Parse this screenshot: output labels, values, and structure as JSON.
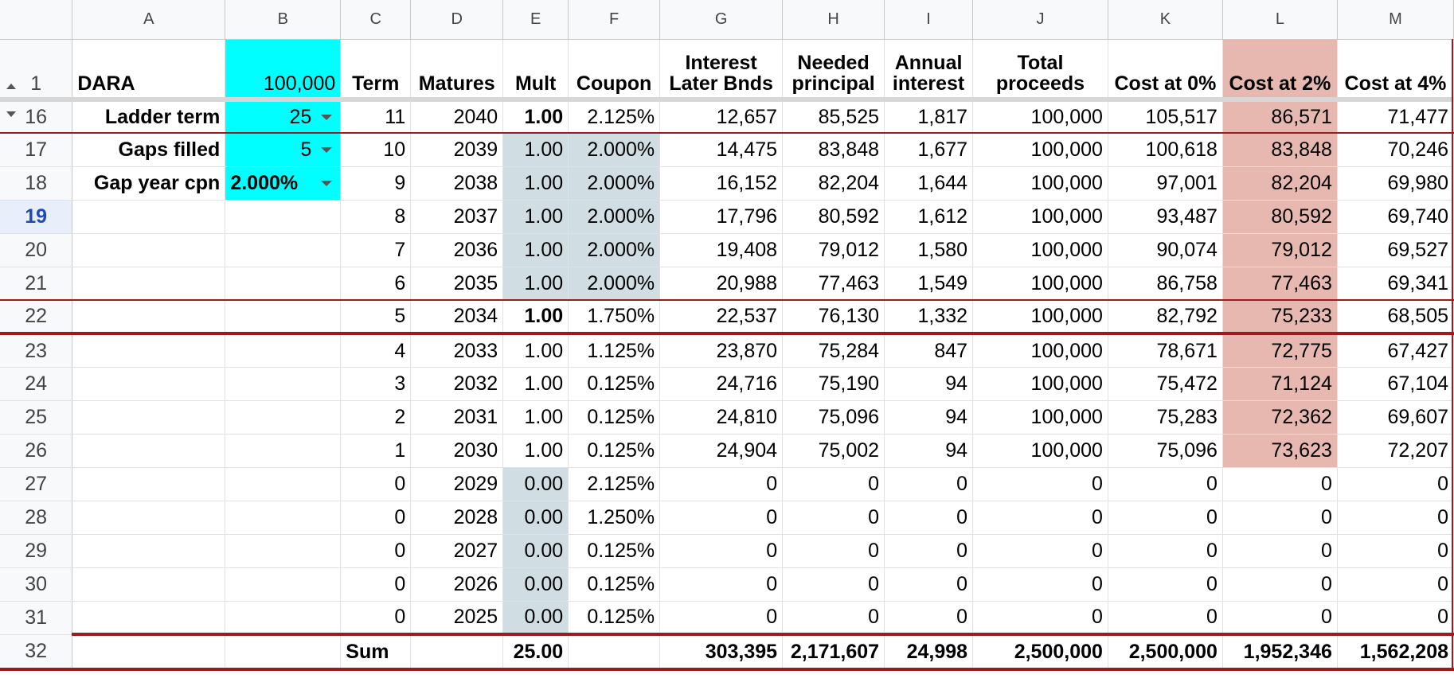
{
  "columns": [
    "A",
    "B",
    "C",
    "D",
    "E",
    "F",
    "G",
    "H",
    "I",
    "J",
    "K",
    "L",
    "M"
  ],
  "header_row": {
    "row": "1",
    "A": "DARA",
    "B": "100,000",
    "C": "Term",
    "D": "Matures",
    "E": "Mult",
    "F": "Coupon",
    "G1": "Interest",
    "G2": "Later Bnds",
    "H1": "Needed",
    "H2": "principal",
    "I1": "Annual",
    "I2": "interest",
    "J1": "Total",
    "J2": "proceeds",
    "K": "Cost at 0%",
    "L": "Cost at 2%",
    "M": "Cost at 4%"
  },
  "inputs": {
    "ladder_term_label": "Ladder term",
    "ladder_term_value": "25",
    "gaps_filled_label": "Gaps filled",
    "gaps_filled_value": "5",
    "gap_year_cpn_label": "Gap year cpn",
    "gap_year_cpn_value": "2.000%"
  },
  "rows": [
    {
      "row": "16",
      "C": "11",
      "D": "2040",
      "E": "1.00",
      "F": "2.125%",
      "G": "12,657",
      "H": "85,525",
      "I": "1,817",
      "J": "100,000",
      "K": "105,517",
      "L": "86,571",
      "M": "71,477"
    },
    {
      "row": "17",
      "C": "10",
      "D": "2039",
      "E": "1.00",
      "F": "2.000%",
      "G": "14,475",
      "H": "83,848",
      "I": "1,677",
      "J": "100,000",
      "K": "100,618",
      "L": "83,848",
      "M": "70,246"
    },
    {
      "row": "18",
      "C": "9",
      "D": "2038",
      "E": "1.00",
      "F": "2.000%",
      "G": "16,152",
      "H": "82,204",
      "I": "1,644",
      "J": "100,000",
      "K": "97,001",
      "L": "82,204",
      "M": "69,980"
    },
    {
      "row": "19",
      "C": "8",
      "D": "2037",
      "E": "1.00",
      "F": "2.000%",
      "G": "17,796",
      "H": "80,592",
      "I": "1,612",
      "J": "100,000",
      "K": "93,487",
      "L": "80,592",
      "M": "69,740"
    },
    {
      "row": "20",
      "C": "7",
      "D": "2036",
      "E": "1.00",
      "F": "2.000%",
      "G": "19,408",
      "H": "79,012",
      "I": "1,580",
      "J": "100,000",
      "K": "90,074",
      "L": "79,012",
      "M": "69,527"
    },
    {
      "row": "21",
      "C": "6",
      "D": "2035",
      "E": "1.00",
      "F": "2.000%",
      "G": "20,988",
      "H": "77,463",
      "I": "1,549",
      "J": "100,000",
      "K": "86,758",
      "L": "77,463",
      "M": "69,341"
    },
    {
      "row": "22",
      "C": "5",
      "D": "2034",
      "E": "1.00",
      "F": "1.750%",
      "G": "22,537",
      "H": "76,130",
      "I": "1,332",
      "J": "100,000",
      "K": "82,792",
      "L": "75,233",
      "M": "68,505"
    },
    {
      "row": "23",
      "C": "4",
      "D": "2033",
      "E": "1.00",
      "F": "1.125%",
      "G": "23,870",
      "H": "75,284",
      "I": "847",
      "J": "100,000",
      "K": "78,671",
      "L": "72,775",
      "M": "67,427"
    },
    {
      "row": "24",
      "C": "3",
      "D": "2032",
      "E": "1.00",
      "F": "0.125%",
      "G": "24,716",
      "H": "75,190",
      "I": "94",
      "J": "100,000",
      "K": "75,472",
      "L": "71,124",
      "M": "67,104"
    },
    {
      "row": "25",
      "C": "2",
      "D": "2031",
      "E": "1.00",
      "F": "0.125%",
      "G": "24,810",
      "H": "75,096",
      "I": "94",
      "J": "100,000",
      "K": "75,283",
      "L": "72,362",
      "M": "69,607"
    },
    {
      "row": "26",
      "C": "1",
      "D": "2030",
      "E": "1.00",
      "F": "0.125%",
      "G": "24,904",
      "H": "75,002",
      "I": "94",
      "J": "100,000",
      "K": "75,096",
      "L": "73,623",
      "M": "72,207"
    },
    {
      "row": "27",
      "C": "0",
      "D": "2029",
      "E": "0.00",
      "F": "2.125%",
      "G": "0",
      "H": "0",
      "I": "0",
      "J": "0",
      "K": "0",
      "L": "0",
      "M": "0"
    },
    {
      "row": "28",
      "C": "0",
      "D": "2028",
      "E": "0.00",
      "F": "1.250%",
      "G": "0",
      "H": "0",
      "I": "0",
      "J": "0",
      "K": "0",
      "L": "0",
      "M": "0"
    },
    {
      "row": "29",
      "C": "0",
      "D": "2027",
      "E": "0.00",
      "F": "0.125%",
      "G": "0",
      "H": "0",
      "I": "0",
      "J": "0",
      "K": "0",
      "L": "0",
      "M": "0"
    },
    {
      "row": "30",
      "C": "0",
      "D": "2026",
      "E": "0.00",
      "F": "0.125%",
      "G": "0",
      "H": "0",
      "I": "0",
      "J": "0",
      "K": "0",
      "L": "0",
      "M": "0"
    },
    {
      "row": "31",
      "C": "0",
      "D": "2025",
      "E": "0.00",
      "F": "0.125%",
      "G": "0",
      "H": "0",
      "I": "0",
      "J": "0",
      "K": "0",
      "L": "0",
      "M": "0"
    }
  ],
  "sum_row": {
    "row": "32",
    "C": "Sum",
    "E": "25.00",
    "G": "303,395",
    "H": "2,171,607",
    "I": "24,998",
    "J": "2,500,000",
    "K": "2,500,000",
    "L": "1,952,346",
    "M": "1,562,208"
  },
  "colors": {
    "input_cell": "#00ffff",
    "gap_cell": "#d0dee3",
    "highlight_column": "#e6b8af",
    "border_accent": "#9b1c1c",
    "selected_row_header": "#1f4bb8"
  }
}
